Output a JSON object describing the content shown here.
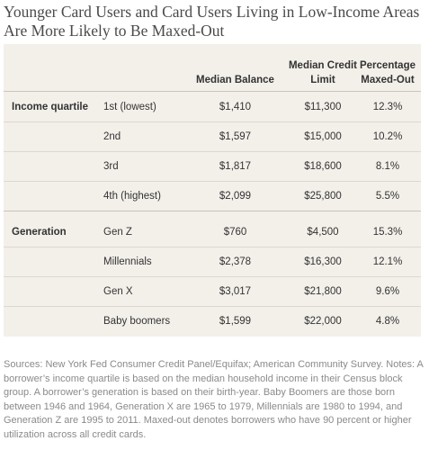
{
  "title": "Younger Card Users and Card Users Living in Low-Income Areas Are More Likely to Be Maxed-Out",
  "table": {
    "headers": {
      "balance": "Median Balance",
      "credit_limit": "Median Credit Limit",
      "maxed": "Percentage Maxed-Out"
    },
    "groups": [
      {
        "name": "Income quartile",
        "rows": [
          {
            "label": "1st (lowest)",
            "balance": "$1,410",
            "credit_limit": "$11,300",
            "maxed": "12.3%"
          },
          {
            "label": "2nd",
            "balance": "$1,597",
            "credit_limit": "$15,000",
            "maxed": "10.2%"
          },
          {
            "label": "3rd",
            "balance": "$1,817",
            "credit_limit": "$18,600",
            "maxed": "8.1%"
          },
          {
            "label": "4th (highest)",
            "balance": "$2,099",
            "credit_limit": "$25,800",
            "maxed": "5.5%"
          }
        ]
      },
      {
        "name": "Generation",
        "rows": [
          {
            "label": "Gen Z",
            "balance": "$760",
            "credit_limit": "$4,500",
            "maxed": "15.3%"
          },
          {
            "label": "Millennials",
            "balance": "$2,378",
            "credit_limit": "$16,300",
            "maxed": "12.1%"
          },
          {
            "label": "Gen X",
            "balance": "$3,017",
            "credit_limit": "$21,800",
            "maxed": "9.6%"
          },
          {
            "label": "Baby boomers",
            "balance": "$1,599",
            "credit_limit": "$22,000",
            "maxed": "4.8%"
          }
        ]
      }
    ]
  },
  "footnote": "Sources: New York Fed Consumer Credit Panel/Equifax; American Community Survey. Notes: A borrower’s income quartile is based on the median household income in their Census block group. A borrower’s generation is based on their birth-year. Baby Boomers are those born between 1946 and 1964, Generation X are 1965 to 1979, Millennials are 1980 to 1994, and Generation Z are 1995 to 2011. Maxed-out denotes borrowers who have 90 percent or higher utilization across all credit cards."
}
